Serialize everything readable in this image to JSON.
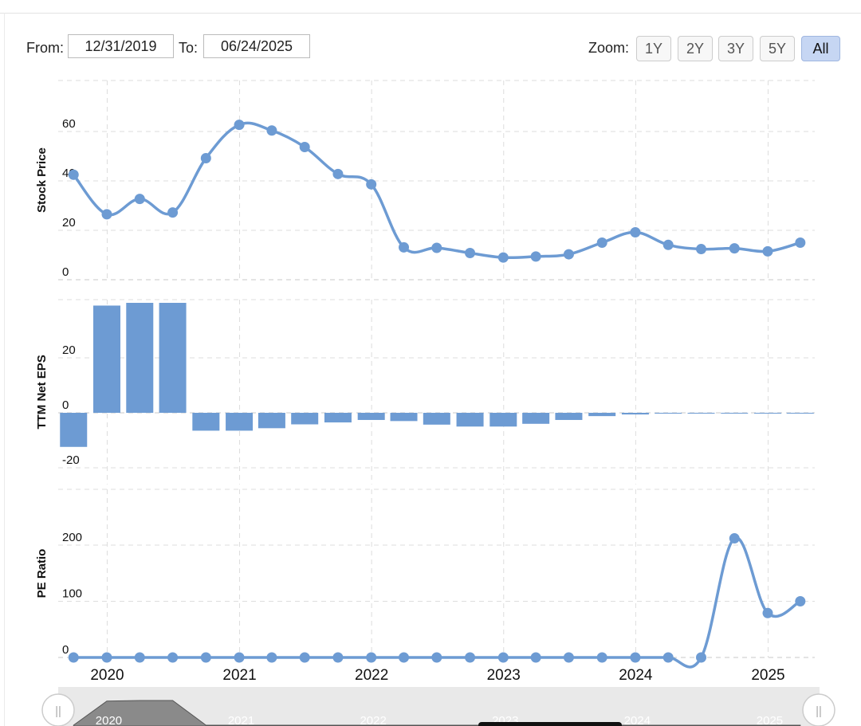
{
  "range": {
    "from_label": "From:",
    "from_value": "12/31/2019",
    "to_label": "To:",
    "to_value": "06/24/2025"
  },
  "zoom": {
    "label": "Zoom:",
    "buttons": [
      "1Y",
      "2Y",
      "3Y",
      "5Y",
      "All"
    ],
    "active": "All"
  },
  "chart_data": [
    {
      "type": "line",
      "ylabel": "Stock Price",
      "yticks": [
        0,
        20,
        40,
        60
      ],
      "ylim": [
        0,
        80
      ],
      "color": "#6d9bd3",
      "x": [
        "2019-09-30",
        "2019-12-31",
        "2020-03-31",
        "2020-06-30",
        "2020-09-30",
        "2020-12-31",
        "2021-03-31",
        "2021-06-30",
        "2021-09-30",
        "2021-12-31",
        "2022-03-31",
        "2022-06-30",
        "2022-09-30",
        "2022-12-31",
        "2023-03-31",
        "2023-06-30",
        "2023-09-30",
        "2023-12-31",
        "2024-03-31",
        "2024-06-30",
        "2024-09-30",
        "2024-12-31",
        "2025-03-31"
      ],
      "values": [
        42.5,
        26.5,
        32.7,
        27.2,
        49.2,
        62.7,
        60.4,
        53.7,
        42.8,
        38.6,
        13.1,
        12.9,
        10.8,
        9.0,
        9.4,
        10.3,
        15.0,
        19.2,
        14.1,
        12.4,
        12.7,
        11.5,
        15.0
      ]
    },
    {
      "type": "bar",
      "ylabel": "TTM Net EPS",
      "yticks": [
        -20,
        0,
        20
      ],
      "ylim": [
        -26,
        42
      ],
      "color": "#6d9bd3",
      "x": [
        "2019-09-30",
        "2019-12-31",
        "2020-03-31",
        "2020-06-30",
        "2020-09-30",
        "2020-12-31",
        "2021-03-31",
        "2021-06-30",
        "2021-09-30",
        "2021-12-31",
        "2022-03-31",
        "2022-06-30",
        "2022-09-30",
        "2022-12-31",
        "2023-03-31",
        "2023-06-30",
        "2023-09-30",
        "2023-12-31",
        "2024-03-31",
        "2024-06-30",
        "2024-09-30",
        "2024-12-31",
        "2025-03-31"
      ],
      "values": [
        -12.4,
        39.0,
        40.0,
        40.0,
        -6.5,
        -6.5,
        -5.6,
        -4.2,
        -3.5,
        -2.6,
        -3.0,
        -4.3,
        -5.0,
        -5.0,
        -4.0,
        -2.6,
        -1.2,
        -0.6,
        -0.3,
        -0.2,
        -0.2,
        -0.2,
        -0.1
      ]
    },
    {
      "type": "line",
      "ylabel": "PE Ratio",
      "yticks": [
        0,
        100,
        200
      ],
      "ylim": [
        0,
        300
      ],
      "color": "#6d9bd3",
      "x": [
        "2019-09-30",
        "2019-12-31",
        "2020-03-31",
        "2020-06-30",
        "2020-09-30",
        "2020-12-31",
        "2021-03-31",
        "2021-06-30",
        "2021-09-30",
        "2021-12-31",
        "2022-03-31",
        "2022-06-30",
        "2022-09-30",
        "2022-12-31",
        "2023-03-31",
        "2023-06-30",
        "2023-09-30",
        "2023-12-31",
        "2024-03-31",
        "2024-06-30",
        "2024-09-30",
        "2024-12-31",
        "2025-03-31"
      ],
      "values": [
        0,
        0,
        0,
        0,
        0,
        0,
        0,
        0,
        0,
        0,
        0,
        0,
        0,
        0,
        0,
        0,
        0,
        0,
        0,
        0,
        212,
        79,
        100
      ]
    }
  ],
  "x_axis": {
    "years": [
      "2020",
      "2021",
      "2022",
      "2023",
      "2024",
      "2025"
    ]
  },
  "navigator": {
    "labels": [
      "2020",
      "2021",
      "2022",
      "2023",
      "2024",
      "2025"
    ],
    "handle_glyph": "||"
  }
}
